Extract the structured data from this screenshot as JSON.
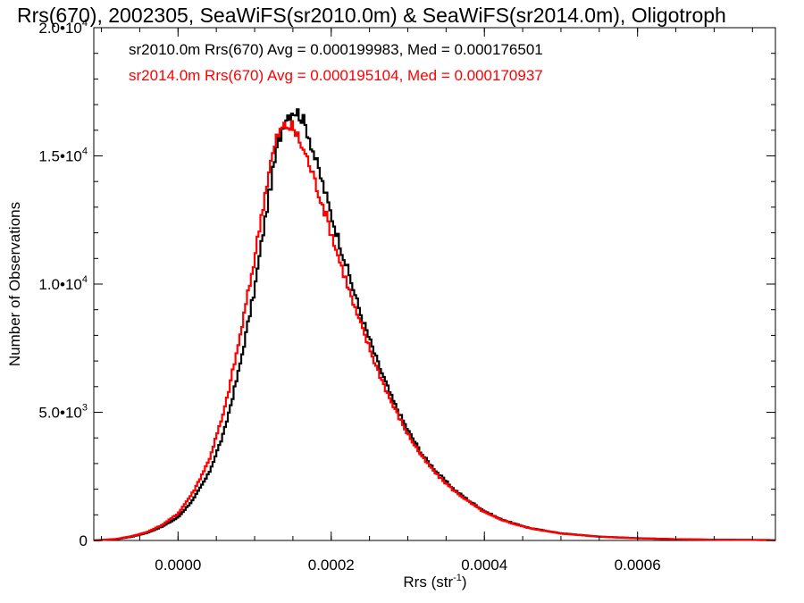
{
  "chart_data": {
    "type": "histogram",
    "title": "Rrs(670), 2002305, SeaWiFS(sr2010.0m) & SeaWiFS(sr2014.0m), Oligotroph",
    "xlabel": "Rrs (str",
    "xlabel_superscript": "-1",
    "xlabel_suffix": ")",
    "ylabel": "Number of Observations",
    "xlim": [
      -0.00011,
      0.00078
    ],
    "ylim": [
      0,
      20000
    ],
    "x_ticks": [
      {
        "value": 0.0,
        "label": "0.0000"
      },
      {
        "value": 0.0002,
        "label": "0.0002"
      },
      {
        "value": 0.0004,
        "label": "0.0004"
      },
      {
        "value": 0.0006,
        "label": "0.0006"
      }
    ],
    "y_ticks": [
      {
        "value": 0,
        "mantissa": "0",
        "exponent": ""
      },
      {
        "value": 5000,
        "mantissa": "5.0•10",
        "exponent": "3"
      },
      {
        "value": 10000,
        "mantissa": "1.0•10",
        "exponent": "4"
      },
      {
        "value": 15000,
        "mantissa": "1.5•10",
        "exponent": "4"
      },
      {
        "value": 20000,
        "mantissa": "2.0•10",
        "exponent": "4"
      }
    ],
    "legend_placement": "top-left",
    "series": [
      {
        "name": "sr2010.0m Rrs(670) Avg = 0.000199983, Med = 0.000176501",
        "color": "#000000",
        "x": [
          -0.00011,
          -8e-05,
          -6e-05,
          -4e-05,
          -2e-05,
          0.0,
          2e-05,
          4e-05,
          6e-05,
          8e-05,
          0.0001,
          0.00011,
          0.00012,
          0.00013,
          0.00014,
          0.00015,
          0.00016,
          0.00017,
          0.00018,
          0.00019,
          0.0002,
          0.00021,
          0.00022,
          0.00023,
          0.00024,
          0.00026,
          0.00028,
          0.0003,
          0.00032,
          0.00034,
          0.00036,
          0.00038,
          0.0004,
          0.00042,
          0.00044,
          0.00046,
          0.0005,
          0.00055,
          0.0006,
          0.00065,
          0.0007,
          0.00078
        ],
        "y": [
          0,
          50,
          150,
          300,
          550,
          900,
          1600,
          2600,
          4200,
          6700,
          9800,
          11800,
          13700,
          15400,
          16500,
          16800,
          16600,
          15900,
          14800,
          13800,
          12700,
          11700,
          10700,
          9700,
          8700,
          7000,
          5500,
          4300,
          3300,
          2600,
          2000,
          1550,
          1150,
          850,
          650,
          480,
          280,
          150,
          90,
          50,
          30,
          15
        ]
      },
      {
        "name": "sr2014.0m Rrs(670) Avg = 0.000195104, Med = 0.000170937",
        "color": "#ff0000",
        "x": [
          -0.00011,
          -8e-05,
          -6e-05,
          -4e-05,
          -2e-05,
          0.0,
          2e-05,
          4e-05,
          6e-05,
          8e-05,
          0.0001,
          0.00011,
          0.00012,
          0.00013,
          0.00014,
          0.00015,
          0.00016,
          0.00017,
          0.00018,
          0.00019,
          0.0002,
          0.00021,
          0.00022,
          0.00023,
          0.00024,
          0.00026,
          0.00028,
          0.0003,
          0.00032,
          0.00034,
          0.00036,
          0.00038,
          0.0004,
          0.00042,
          0.00044,
          0.00046,
          0.0005,
          0.00055,
          0.0006,
          0.00065,
          0.0007,
          0.00078
        ],
        "y": [
          0,
          60,
          170,
          330,
          620,
          1050,
          1900,
          3100,
          5000,
          7800,
          11000,
          12900,
          14600,
          15800,
          16200,
          16100,
          15500,
          14800,
          13900,
          13000,
          12000,
          11000,
          10100,
          9100,
          8300,
          6700,
          5300,
          4150,
          3200,
          2500,
          1950,
          1500,
          1100,
          830,
          630,
          470,
          270,
          145,
          85,
          48,
          28,
          14
        ]
      }
    ]
  }
}
